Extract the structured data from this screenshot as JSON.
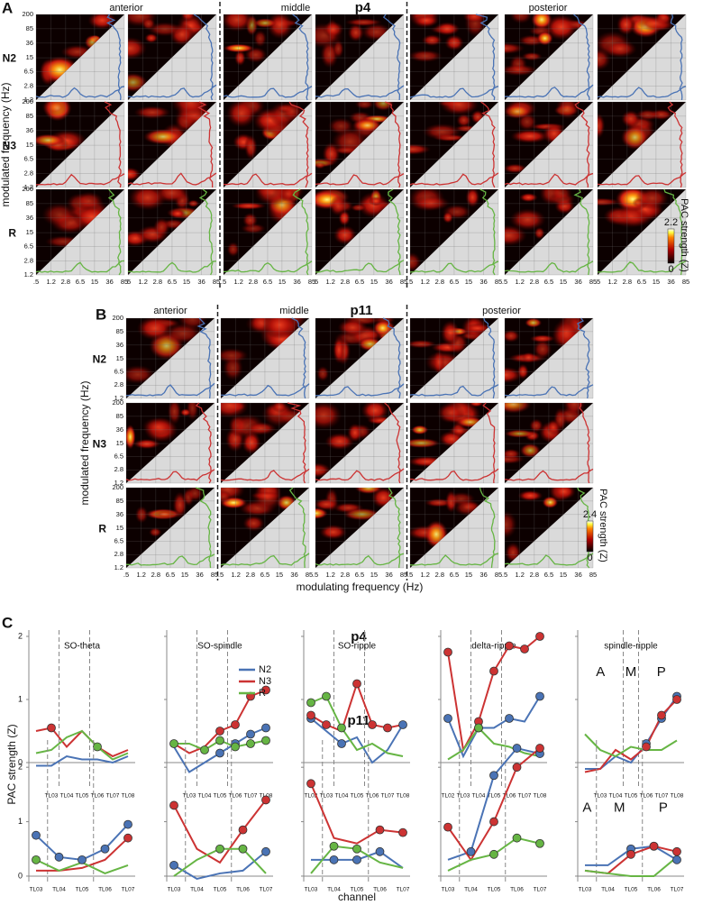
{
  "panel_a": {
    "label": "A",
    "title": "p4",
    "regions": [
      "anterior",
      "middle",
      "posterior"
    ],
    "region_columns": [
      2,
      2,
      3
    ],
    "states": [
      "N2",
      "N3",
      "R"
    ],
    "y_label": "modulated frequency (Hz)",
    "colorbar": {
      "label": "PAC strength (Z)",
      "max": 2.2,
      "min": 0
    }
  },
  "panel_b": {
    "label": "B",
    "title": "p11",
    "regions": [
      "anterior",
      "middle",
      "posterior"
    ],
    "region_columns": [
      1,
      2,
      2
    ],
    "states": [
      "N2",
      "N3",
      "R"
    ],
    "y_label": "modulated frequency (Hz)",
    "x_label": "modulating frequency (Hz)",
    "colorbar": {
      "label": "PAC strength (Z)",
      "max": 2.4,
      "min": 0
    }
  },
  "comodulogram_axes": {
    "log": true,
    "xlim": [
      0.5,
      85
    ],
    "ylim": [
      1.2,
      200
    ],
    "xticks": [
      {
        "value": 0.5,
        "label": ".5"
      },
      1.2,
      2.8,
      6.5,
      15,
      36,
      85
    ],
    "yticks": [
      1.2,
      2.8,
      6.5,
      15,
      36,
      85,
      200
    ]
  },
  "state_colors": [
    "#4a73b5",
    "#cc3333",
    "#66b544"
  ],
  "panel_c": {
    "label": "C",
    "rows": [
      "p4",
      "p11"
    ],
    "y_label": "PAC strength (Z)",
    "x_label": "channel"
  },
  "chart_data": [
    {
      "type": "line",
      "title": "SO-theta",
      "categories": [
        null,
        "TL03",
        "TL04",
        "TL05",
        "TL06",
        "TL07",
        "TL08"
      ],
      "ylim": [
        -0.4,
        2.1
      ],
      "yticks": [
        0,
        1,
        2
      ],
      "dividers": [
        "TL03",
        "TL05"
      ],
      "series": [
        {
          "name": "N2",
          "color": "#4a73b5",
          "values": [
            -0.05,
            -0.05,
            0.1,
            0.05,
            0.05,
            0.0,
            0.1
          ],
          "marked": []
        },
        {
          "name": "N3",
          "color": "#cc3333",
          "values": [
            0.5,
            0.55,
            0.25,
            0.5,
            0.25,
            0.1,
            0.2
          ],
          "marked": [
            1
          ]
        },
        {
          "name": "R",
          "color": "#66b544",
          "values": [
            0.15,
            0.2,
            0.4,
            0.5,
            0.25,
            0.05,
            0.15
          ],
          "marked": [
            4
          ]
        }
      ]
    },
    {
      "type": "line",
      "title": "SO-spindle",
      "categories": [
        null,
        "TL03",
        "TL04",
        "TL05",
        "TL06",
        "TL07",
        "TL08"
      ],
      "ylim": [
        -0.4,
        2.1
      ],
      "yticks": [
        0,
        1,
        2
      ],
      "dividers": [
        "TL03",
        "TL05"
      ],
      "legend": "top-right",
      "series": [
        {
          "name": "N2",
          "color": "#4a73b5",
          "values": [
            0.25,
            -0.15,
            0.0,
            0.15,
            0.3,
            0.45,
            0.55
          ],
          "marked": [
            3,
            4,
            5,
            6
          ]
        },
        {
          "name": "N3",
          "color": "#cc3333",
          "values": [
            0.3,
            0.15,
            0.25,
            0.5,
            0.6,
            1.05,
            1.15
          ],
          "marked": [
            3,
            4,
            5,
            6
          ]
        },
        {
          "name": "R",
          "color": "#66b544",
          "values": [
            0.3,
            0.3,
            0.2,
            0.35,
            0.25,
            0.3,
            0.35
          ],
          "marked": [
            0,
            2,
            3,
            4,
            5,
            6
          ]
        }
      ]
    },
    {
      "type": "line",
      "title": "SO-ripple",
      "categories": [
        "TL02",
        "TL03",
        "TL04",
        "TL05",
        "TL06",
        "TL07",
        "TL08"
      ],
      "ylim": [
        -0.4,
        2.1
      ],
      "yticks": [
        0,
        1,
        2
      ],
      "dividers": [
        "TL03",
        "TL05"
      ],
      "series": [
        {
          "name": "N2",
          "color": "#4a73b5",
          "values": [
            0.7,
            0.5,
            0.3,
            0.4,
            0.0,
            0.2,
            0.6
          ],
          "marked": [
            0,
            2,
            6
          ]
        },
        {
          "name": "N3",
          "color": "#cc3333",
          "values": [
            0.75,
            0.6,
            0.5,
            1.25,
            0.6,
            0.55,
            0.6
          ],
          "marked": [
            0,
            1,
            3,
            4,
            5
          ]
        },
        {
          "name": "R",
          "color": "#66b544",
          "values": [
            0.95,
            1.05,
            0.55,
            0.2,
            0.3,
            0.15,
            0.1
          ],
          "marked": [
            0,
            1,
            2
          ]
        }
      ]
    },
    {
      "type": "line",
      "title": "delta-ripple",
      "categories": [
        "TL02",
        "TL03",
        "TL04",
        "TL05",
        "TL06",
        "TL07",
        "TL08"
      ],
      "ylim": [
        -0.4,
        2.1
      ],
      "yticks": [
        0,
        1,
        2
      ],
      "dividers": [
        "TL03",
        "TL05"
      ],
      "series": [
        {
          "name": "N2",
          "color": "#4a73b5",
          "values": [
            0.7,
            0.1,
            0.55,
            0.55,
            0.7,
            0.65,
            1.05
          ],
          "marked": [
            0,
            2,
            4,
            6
          ]
        },
        {
          "name": "N3",
          "color": "#cc3333",
          "values": [
            1.75,
            0.2,
            0.65,
            1.45,
            1.85,
            1.8,
            2.0
          ],
          "marked": [
            0,
            2,
            3,
            4,
            5,
            6
          ]
        },
        {
          "name": "R",
          "color": "#66b544",
          "values": [
            0.05,
            0.2,
            0.55,
            0.3,
            0.25,
            0.15,
            0.1
          ],
          "marked": [
            2
          ]
        }
      ]
    },
    {
      "type": "line",
      "title": "spindle-ripple",
      "categories": [
        null,
        "TL03",
        "TL04",
        "TL05",
        "TL06",
        "TL07",
        "TL08"
      ],
      "ylim": [
        -0.4,
        2.1
      ],
      "yticks": [
        0,
        1,
        2
      ],
      "dividers": [
        "TL04",
        "TL05"
      ],
      "region_labels": [
        "A",
        "M",
        "P"
      ],
      "series": [
        {
          "name": "N2",
          "color": "#4a73b5",
          "values": [
            -0.1,
            -0.1,
            0.1,
            0.0,
            0.3,
            0.7,
            1.05
          ],
          "marked": [
            4,
            5,
            6
          ]
        },
        {
          "name": "N3",
          "color": "#cc3333",
          "values": [
            -0.15,
            -0.1,
            0.2,
            0.05,
            0.25,
            0.75,
            1.0
          ],
          "marked": [
            4,
            5,
            6
          ]
        },
        {
          "name": "R",
          "color": "#66b544",
          "values": [
            0.45,
            0.2,
            0.1,
            0.25,
            0.2,
            0.2,
            0.35
          ],
          "marked": []
        }
      ]
    },
    {
      "type": "line",
      "categories": [
        "TL03",
        "TL04",
        "TL05",
        "TL06",
        "TL07"
      ],
      "ylim": [
        -0.1,
        2.5
      ],
      "yticks": [
        0,
        1,
        2
      ],
      "dividers": [
        "TL03",
        "TL05"
      ],
      "series": [
        {
          "name": "N2",
          "color": "#4a73b5",
          "values": [
            0.75,
            0.35,
            0.3,
            0.5,
            0.95
          ],
          "marked": [
            0,
            1,
            2,
            3,
            4
          ]
        },
        {
          "name": "N3",
          "color": "#cc3333",
          "values": [
            0.1,
            0.1,
            0.15,
            0.3,
            0.7
          ],
          "marked": [
            4
          ]
        },
        {
          "name": "R",
          "color": "#66b544",
          "values": [
            0.3,
            0.1,
            0.25,
            0.05,
            0.2
          ],
          "marked": [
            0
          ]
        }
      ]
    },
    {
      "type": "line",
      "categories": [
        "TL03",
        "TL04",
        "TL05",
        "TL06",
        "TL07"
      ],
      "ylim": [
        -0.1,
        2.5
      ],
      "yticks": [
        0,
        1,
        2
      ],
      "dividers": [
        "TL03",
        "TL05"
      ],
      "series": [
        {
          "name": "N2",
          "color": "#4a73b5",
          "values": [
            0.2,
            -0.05,
            0.05,
            0.1,
            0.45
          ],
          "marked": [
            0,
            4
          ]
        },
        {
          "name": "N3",
          "color": "#cc3333",
          "values": [
            1.3,
            0.5,
            0.25,
            0.85,
            1.4
          ],
          "marked": [
            0,
            3,
            4
          ]
        },
        {
          "name": "R",
          "color": "#66b544",
          "values": [
            0.0,
            0.3,
            0.5,
            0.5,
            0.05
          ],
          "marked": [
            2,
            3
          ]
        }
      ]
    },
    {
      "type": "line",
      "categories": [
        "TL03",
        "TL04",
        "TL05",
        "TL06",
        "TL07"
      ],
      "ylim": [
        -0.1,
        2.5
      ],
      "yticks": [
        0,
        1,
        2
      ],
      "dividers": [
        "TL03",
        "TL05"
      ],
      "series": [
        {
          "name": "N2",
          "color": "#4a73b5",
          "values": [
            0.3,
            0.3,
            0.3,
            0.45,
            0.15
          ],
          "marked": [
            1,
            2,
            3
          ]
        },
        {
          "name": "N3",
          "color": "#cc3333",
          "values": [
            1.7,
            0.7,
            0.6,
            0.85,
            0.8
          ],
          "marked": [
            0,
            3,
            4
          ]
        },
        {
          "name": "R",
          "color": "#66b544",
          "values": [
            0.05,
            0.55,
            0.5,
            0.25,
            0.15
          ],
          "marked": [
            1,
            2
          ]
        }
      ]
    },
    {
      "type": "line",
      "categories": [
        "TL03",
        "TL04",
        "TL05",
        "TL06",
        "TL07"
      ],
      "ylim": [
        -0.1,
        2.5
      ],
      "yticks": [
        0,
        1,
        2
      ],
      "dividers": [
        "TL03",
        "TL05"
      ],
      "series": [
        {
          "name": "N2",
          "color": "#4a73b5",
          "values": [
            0.3,
            0.45,
            1.85,
            2.35,
            2.25
          ],
          "marked": [
            1,
            2,
            3,
            4
          ]
        },
        {
          "name": "N3",
          "color": "#cc3333",
          "values": [
            0.9,
            0.3,
            1.0,
            2.0,
            2.35
          ],
          "marked": [
            0,
            2,
            3,
            4
          ]
        },
        {
          "name": "R",
          "color": "#66b544",
          "values": [
            0.1,
            0.3,
            0.4,
            0.7,
            0.6
          ],
          "marked": [
            2,
            3,
            4
          ]
        }
      ]
    },
    {
      "type": "line",
      "categories": [
        "TL03",
        "TL04",
        "TL05",
        "TL06",
        "TL07"
      ],
      "ylim": [
        -0.1,
        2.5
      ],
      "yticks": [
        0,
        1,
        2
      ],
      "dividers": [
        "TL03",
        "TL05"
      ],
      "region_labels": [
        "A",
        "M",
        "P"
      ],
      "series": [
        {
          "name": "N2",
          "color": "#4a73b5",
          "values": [
            0.2,
            0.2,
            0.5,
            0.55,
            0.3
          ],
          "marked": [
            2,
            3,
            4
          ]
        },
        {
          "name": "N3",
          "color": "#cc3333",
          "values": [
            0.1,
            0.05,
            0.4,
            0.55,
            0.45
          ],
          "marked": [
            2,
            3,
            4
          ]
        },
        {
          "name": "R",
          "color": "#66b544",
          "values": [
            0.1,
            0.05,
            0.0,
            0.0,
            0.35
          ],
          "marked": []
        }
      ]
    }
  ]
}
